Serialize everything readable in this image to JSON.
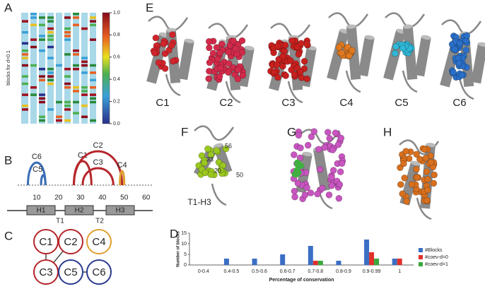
{
  "panels": [
    "A",
    "B",
    "C",
    "D",
    "E",
    "F",
    "G",
    "H"
  ],
  "panel_a": {
    "ylabel": "blocks for d=0.1",
    "colorbar": {
      "lim": [
        0,
        1
      ],
      "ticks": [
        {
          "value": 0,
          "label": "0.0"
        },
        {
          "value": 0.2,
          "label": "0.2"
        },
        {
          "value": 0.4,
          "label": "0.4"
        },
        {
          "value": 0.6,
          "label": "0.6"
        },
        {
          "value": 0.8,
          "label": "0.8"
        },
        {
          "value": 1,
          "label": "1.0"
        }
      ]
    }
  },
  "panel_b": {
    "xlim": [
      1,
      63
    ],
    "xticks": [
      10,
      20,
      30,
      40,
      50,
      60
    ],
    "arcs": [
      {
        "label": "C6",
        "start": 6,
        "end": 14,
        "color": "#3a6db5"
      },
      {
        "label": "C5",
        "start": 12,
        "end": 14,
        "color": "#3a6db5"
      },
      {
        "label": "C1",
        "start": 27,
        "end": 35,
        "color": "#b5252b"
      },
      {
        "label": "C2",
        "start": 27,
        "end": 49,
        "color": "#b5252b"
      },
      {
        "label": "C3",
        "start": 31,
        "end": 45,
        "color": "#b5252b"
      },
      {
        "label": "C4",
        "start": 48,
        "end": 50,
        "color": "#e0a030"
      }
    ],
    "helices": [
      "H1",
      "H2",
      "H3"
    ],
    "turns": [
      "T1",
      "T2"
    ]
  },
  "panel_c": {
    "nodes": [
      {
        "label": "C1",
        "color": "#b5252b"
      },
      {
        "label": "C2",
        "color": "#b5252b"
      },
      {
        "label": "C4",
        "color": "#e0a030"
      },
      {
        "label": "C3",
        "color": "#b5252b"
      },
      {
        "label": "C5",
        "color": "#2a3a8f"
      },
      {
        "label": "C6",
        "color": "#2a3a8f"
      }
    ]
  },
  "panel_e": {
    "labels": [
      "C1",
      "C2",
      "C3",
      "C4",
      "C5",
      "C6"
    ]
  },
  "panel_f": {
    "label": "T1-H3",
    "residues": [
      "56",
      "33",
      "20",
      "50"
    ]
  },
  "chart_data": {
    "type": "bar",
    "xlabel": "Percentage of conservation",
    "ylabel": "Number of blocks",
    "categories": [
      "0-0.4",
      "0.4-0.5",
      "0.5-0.6",
      "0.6-0.7",
      "0.7-0.8",
      "0.8-0.9",
      "0.9-0.99",
      "1"
    ],
    "series": [
      {
        "name": "#Blocks",
        "color": "#3a6fc4",
        "values": [
          0,
          3,
          3,
          5,
          9,
          2,
          12,
          3
        ]
      },
      {
        "name": "#coev-d=0",
        "color": "#e0302a",
        "values": [
          0,
          0,
          0,
          0,
          2,
          0,
          6,
          3
        ]
      },
      {
        "name": "#coev-d=1",
        "color": "#3aa83a",
        "values": [
          0,
          0,
          0,
          0,
          2,
          0,
          3,
          0
        ]
      }
    ],
    "ylim": [
      0,
      15
    ],
    "yticks": [
      0,
      5,
      10,
      15
    ]
  }
}
